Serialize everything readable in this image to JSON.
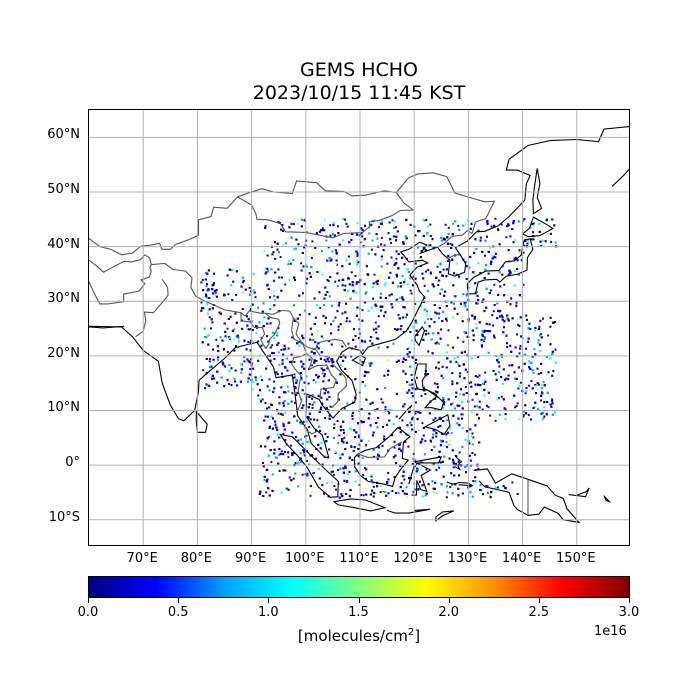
{
  "title": {
    "line1": "GEMS HCHO",
    "line2": "2023/10/15 11:45 KST"
  },
  "map": {
    "lon_range": [
      60,
      160
    ],
    "lat_range": [
      -15,
      65
    ],
    "gridlines": true,
    "grid_color": "#b0b0b0",
    "coastline_color": "#000000",
    "border_color": "#555555"
  },
  "lat_labels": [
    {
      "value": 60,
      "text": "60°N"
    },
    {
      "value": 50,
      "text": "50°N"
    },
    {
      "value": 40,
      "text": "40°N"
    },
    {
      "value": 30,
      "text": "30°N"
    },
    {
      "value": 20,
      "text": "20°N"
    },
    {
      "value": 10,
      "text": "10°N"
    },
    {
      "value": 0,
      "text": "0°"
    },
    {
      "value": -10,
      "text": "10°S"
    }
  ],
  "lon_labels": [
    {
      "value": 70,
      "text": "70°E"
    },
    {
      "value": 80,
      "text": "80°E"
    },
    {
      "value": 90,
      "text": "90°E"
    },
    {
      "value": 100,
      "text": "100°E"
    },
    {
      "value": 110,
      "text": "110°E"
    },
    {
      "value": 120,
      "text": "120°E"
    },
    {
      "value": 130,
      "text": "130°E"
    },
    {
      "value": 140,
      "text": "140°E"
    },
    {
      "value": 150,
      "text": "150°E"
    }
  ],
  "colorbar": {
    "colormap": "jet",
    "range": [
      0.0,
      3.0
    ],
    "ticks": [
      "0.0",
      "0.5",
      "1.0",
      "1.5",
      "2.0",
      "2.5",
      "3.0"
    ],
    "units_prefix": "[molecules/cm",
    "units_sup": "2",
    "units_suffix": "]",
    "exponent": "1e16",
    "colors": [
      "#000080",
      "#0000ff",
      "#00a0ff",
      "#00ffff",
      "#80ff80",
      "#ffff00",
      "#ff9000",
      "#ff0000",
      "#800000"
    ]
  }
}
